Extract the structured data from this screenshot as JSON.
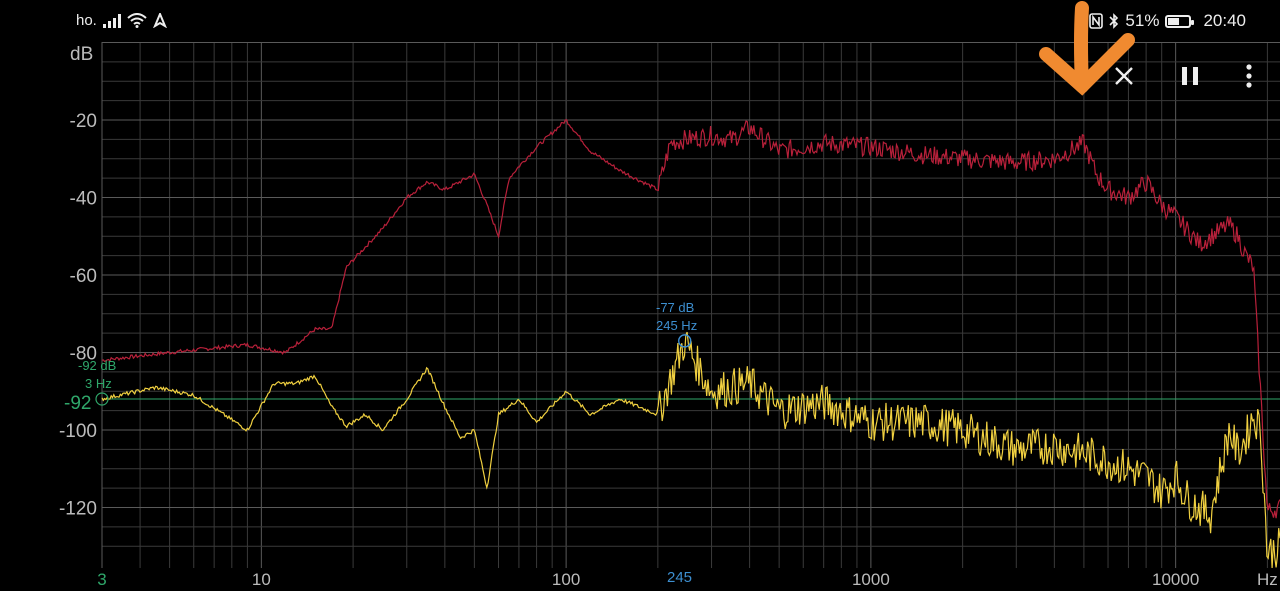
{
  "status_bar": {
    "carrier": "ho.",
    "battery_percent_text": "51%",
    "battery_level": 0.51,
    "time": "20:40",
    "icons": [
      "signal-icon",
      "wifi-icon",
      "data-arrows-icon",
      "nfc-icon",
      "bluetooth-icon",
      "battery-icon"
    ]
  },
  "toolbar": {
    "close_icon": "close-icon",
    "pause_icon": "pause-icon",
    "menu_icon": "more-vert-icon"
  },
  "chart": {
    "y_unit": "dB",
    "x_unit": "Hz",
    "y_tick_labels": [
      "-20",
      "-40",
      "-60",
      "-80",
      "-100",
      "-120"
    ],
    "x_tick_labels": [
      "3",
      "10",
      "100",
      "1000",
      "10000"
    ],
    "threshold_label": "-92",
    "threshold_readout_db": "-92 dB",
    "threshold_readout_hz": "3 Hz",
    "peak_readout_db": "-77 dB",
    "peak_readout_hz": "245 Hz",
    "peak_x_label": "245"
  },
  "colors": {
    "background": "#000000",
    "grid": "#3a3a3a",
    "grid_major": "#5a5a5a",
    "peak_hold_series": "#b8203a",
    "live_series": "#f0d040",
    "threshold_line": "#2fa76a",
    "cursor_text": "#3d8fd0",
    "annotation_arrow": "#f08a30"
  },
  "chart_data": {
    "type": "line",
    "x_scale": "log",
    "xlim": [
      3,
      22000
    ],
    "ylim": [
      -135,
      0
    ],
    "threshold_db": -92,
    "peak_marker": {
      "x": 245,
      "y": -77
    },
    "series": [
      {
        "color": "#b8203a",
        "x": [
          3,
          5,
          9,
          12,
          15,
          17,
          19,
          25,
          30,
          35,
          40,
          50,
          55,
          60,
          65,
          70,
          80,
          100,
          120,
          150,
          200,
          220,
          245,
          300,
          350,
          400,
          500,
          700,
          1000,
          1500,
          2000,
          3000,
          4000,
          5000,
          5500,
          6000,
          7000,
          8000,
          9000,
          10000,
          12000,
          15000,
          16000,
          17000,
          18000,
          20000,
          22000
        ],
        "y": [
          -82,
          -80,
          -78,
          -80,
          -74,
          -74,
          -58,
          -48,
          -40,
          -36,
          -38,
          -34,
          -42,
          -50,
          -35,
          -32,
          -27,
          -20,
          -28,
          -33,
          -38,
          -26,
          -25,
          -24,
          -25,
          -22,
          -28,
          -26,
          -27,
          -29,
          -30,
          -31,
          -30,
          -26,
          -34,
          -38,
          -40,
          -36,
          -42,
          -45,
          -52,
          -47,
          -50,
          -55,
          -58,
          -121,
          -120
        ]
      },
      {
        "color": "#f0d040",
        "x": [
          3,
          4.5,
          6,
          9,
          11,
          13,
          15,
          17,
          19,
          22,
          25,
          30,
          35,
          40,
          45,
          50,
          55,
          60,
          70,
          80,
          100,
          120,
          150,
          200,
          245,
          300,
          400,
          500,
          700,
          1000,
          1500,
          2000,
          3000,
          4000,
          5000,
          6000,
          7000,
          8000,
          9000,
          10000,
          11000,
          13000,
          15000,
          16000,
          17000,
          18000,
          19000,
          20000,
          22000
        ],
        "y": [
          -92,
          -89,
          -91,
          -100,
          -88,
          -88,
          -86,
          -94,
          -99,
          -96,
          -100,
          -92,
          -84,
          -94,
          -102,
          -100,
          -115,
          -96,
          -92,
          -98,
          -90,
          -96,
          -92,
          -96,
          -77,
          -90,
          -88,
          -95,
          -93,
          -98,
          -98,
          -100,
          -105,
          -104,
          -106,
          -108,
          -110,
          -112,
          -116,
          -112,
          -118,
          -122,
          -100,
          -106,
          -102,
          -96,
          -100,
          -132,
          -130
        ]
      }
    ]
  }
}
